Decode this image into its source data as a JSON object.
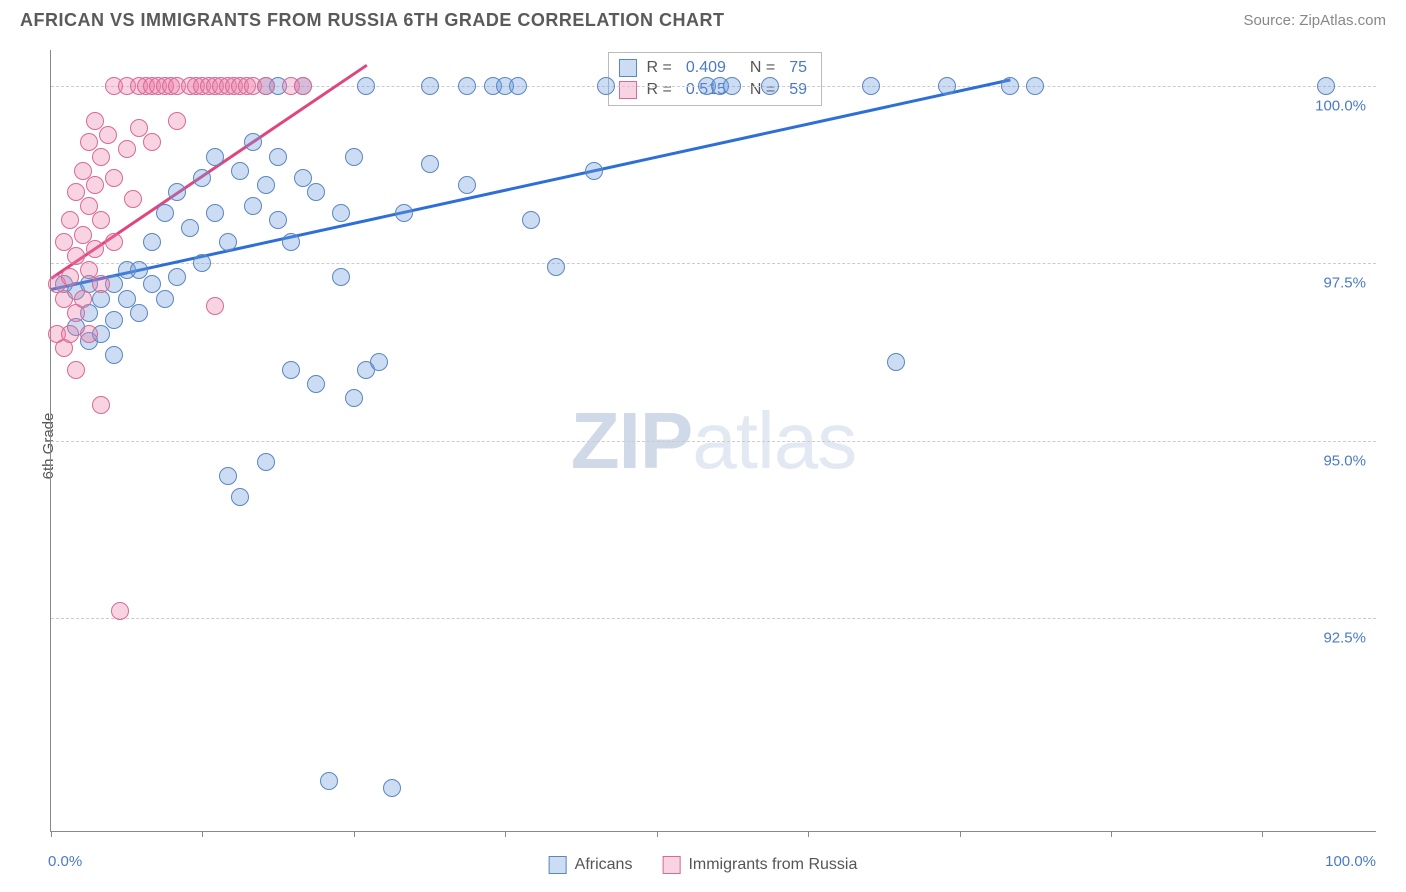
{
  "title": "AFRICAN VS IMMIGRANTS FROM RUSSIA 6TH GRADE CORRELATION CHART",
  "source": "Source: ZipAtlas.com",
  "y_axis_label": "6th Grade",
  "watermark_zip": "ZIP",
  "watermark_atlas": "atlas",
  "x_min_label": "0.0%",
  "x_max_label": "100.0%",
  "chart": {
    "type": "scatter",
    "background_color": "#ffffff",
    "grid_color": "#cccccc",
    "axis_color": "#888888",
    "label_color": "#4a7ac7",
    "xlim_pct": [
      0,
      105
    ],
    "ylim_pct": [
      89.5,
      100.5
    ],
    "y_ticks": [
      {
        "value": 100.0,
        "label": "100.0%"
      },
      {
        "value": 97.5,
        "label": "97.5%"
      },
      {
        "value": 95.0,
        "label": "95.0%"
      },
      {
        "value": 92.5,
        "label": "92.5%"
      }
    ],
    "x_ticks_pct": [
      0,
      12,
      24,
      36,
      48,
      60,
      72,
      84,
      96
    ],
    "marker_radius": 9,
    "marker_border_width": 1.5,
    "series": [
      {
        "name": "Africans",
        "fill_color": "rgba(106,154,220,0.35)",
        "border_color": "#5b86c4",
        "trend_color": "#2d6fd6",
        "trend_from": {
          "x": 0,
          "y": 97.15
        },
        "trend_to": {
          "x": 76,
          "y": 100.1
        },
        "R": "0.409",
        "N": "75",
        "points": [
          {
            "x": 1,
            "y": 97.2
          },
          {
            "x": 2,
            "y": 97.1
          },
          {
            "x": 2,
            "y": 96.6
          },
          {
            "x": 3,
            "y": 97.2
          },
          {
            "x": 3,
            "y": 96.8
          },
          {
            "x": 3,
            "y": 96.4
          },
          {
            "x": 4,
            "y": 97.0
          },
          {
            "x": 4,
            "y": 96.5
          },
          {
            "x": 5,
            "y": 97.2
          },
          {
            "x": 5,
            "y": 96.7
          },
          {
            "x": 5,
            "y": 96.2
          },
          {
            "x": 6,
            "y": 97.0
          },
          {
            "x": 6,
            "y": 97.4
          },
          {
            "x": 7,
            "y": 96.8
          },
          {
            "x": 7,
            "y": 97.4
          },
          {
            "x": 8,
            "y": 97.8
          },
          {
            "x": 8,
            "y": 97.2
          },
          {
            "x": 9,
            "y": 98.2
          },
          {
            "x": 9,
            "y": 97.0
          },
          {
            "x": 10,
            "y": 98.5
          },
          {
            "x": 10,
            "y": 97.3
          },
          {
            "x": 11,
            "y": 98.0
          },
          {
            "x": 12,
            "y": 98.7
          },
          {
            "x": 12,
            "y": 97.5
          },
          {
            "x": 13,
            "y": 98.2
          },
          {
            "x": 13,
            "y": 99.0
          },
          {
            "x": 14,
            "y": 97.8
          },
          {
            "x": 14,
            "y": 94.5
          },
          {
            "x": 15,
            "y": 98.8
          },
          {
            "x": 15,
            "y": 94.2
          },
          {
            "x": 16,
            "y": 99.2
          },
          {
            "x": 16,
            "y": 98.3
          },
          {
            "x": 17,
            "y": 100.0
          },
          {
            "x": 17,
            "y": 98.6
          },
          {
            "x": 17,
            "y": 94.7
          },
          {
            "x": 18,
            "y": 99.0
          },
          {
            "x": 18,
            "y": 98.1
          },
          {
            "x": 18,
            "y": 100.0
          },
          {
            "x": 19,
            "y": 97.8
          },
          {
            "x": 19,
            "y": 96.0
          },
          {
            "x": 20,
            "y": 98.7
          },
          {
            "x": 20,
            "y": 100.0
          },
          {
            "x": 21,
            "y": 98.5
          },
          {
            "x": 21,
            "y": 95.8
          },
          {
            "x": 22,
            "y": 90.2
          },
          {
            "x": 23,
            "y": 98.2
          },
          {
            "x": 23,
            "y": 97.3
          },
          {
            "x": 24,
            "y": 95.6
          },
          {
            "x": 24,
            "y": 99.0
          },
          {
            "x": 25,
            "y": 96.0
          },
          {
            "x": 25,
            "y": 100.0
          },
          {
            "x": 26,
            "y": 96.1
          },
          {
            "x": 27,
            "y": 90.1
          },
          {
            "x": 28,
            "y": 98.2
          },
          {
            "x": 30,
            "y": 100.0
          },
          {
            "x": 30,
            "y": 98.9
          },
          {
            "x": 33,
            "y": 100.0
          },
          {
            "x": 33,
            "y": 98.6
          },
          {
            "x": 35,
            "y": 100.0
          },
          {
            "x": 36,
            "y": 100.0
          },
          {
            "x": 37,
            "y": 100.0
          },
          {
            "x": 38,
            "y": 98.1
          },
          {
            "x": 40,
            "y": 97.45
          },
          {
            "x": 43,
            "y": 98.8
          },
          {
            "x": 44,
            "y": 100.0
          },
          {
            "x": 52,
            "y": 100.0
          },
          {
            "x": 53,
            "y": 100.0
          },
          {
            "x": 54,
            "y": 100.0
          },
          {
            "x": 57,
            "y": 100.0
          },
          {
            "x": 65,
            "y": 100.0
          },
          {
            "x": 67,
            "y": 96.1
          },
          {
            "x": 71,
            "y": 100.0
          },
          {
            "x": 76,
            "y": 100.0
          },
          {
            "x": 78,
            "y": 100.0
          },
          {
            "x": 101,
            "y": 100.0
          }
        ]
      },
      {
        "name": "Immigrants from Russia",
        "fill_color": "rgba(235,130,170,0.35)",
        "border_color": "#d86a95",
        "trend_color": "#e0457e",
        "trend_from": {
          "x": 0,
          "y": 97.3
        },
        "trend_to": {
          "x": 25,
          "y": 100.3
        },
        "R": "0.515",
        "N": "59",
        "points": [
          {
            "x": 0.5,
            "y": 97.2
          },
          {
            "x": 0.5,
            "y": 96.5
          },
          {
            "x": 1,
            "y": 97.8
          },
          {
            "x": 1,
            "y": 97.0
          },
          {
            "x": 1,
            "y": 96.3
          },
          {
            "x": 1.5,
            "y": 98.1
          },
          {
            "x": 1.5,
            "y": 97.3
          },
          {
            "x": 1.5,
            "y": 96.5
          },
          {
            "x": 2,
            "y": 98.5
          },
          {
            "x": 2,
            "y": 97.6
          },
          {
            "x": 2,
            "y": 96.8
          },
          {
            "x": 2,
            "y": 96.0
          },
          {
            "x": 2.5,
            "y": 98.8
          },
          {
            "x": 2.5,
            "y": 97.9
          },
          {
            "x": 2.5,
            "y": 97.0
          },
          {
            "x": 3,
            "y": 99.2
          },
          {
            "x": 3,
            "y": 98.3
          },
          {
            "x": 3,
            "y": 97.4
          },
          {
            "x": 3,
            "y": 96.5
          },
          {
            "x": 3.5,
            "y": 99.5
          },
          {
            "x": 3.5,
            "y": 98.6
          },
          {
            "x": 3.5,
            "y": 97.7
          },
          {
            "x": 4,
            "y": 99.0
          },
          {
            "x": 4,
            "y": 98.1
          },
          {
            "x": 4,
            "y": 97.2
          },
          {
            "x": 4,
            "y": 95.5
          },
          {
            "x": 4.5,
            "y": 99.3
          },
          {
            "x": 5,
            "y": 98.7
          },
          {
            "x": 5,
            "y": 97.8
          },
          {
            "x": 5,
            "y": 100.0
          },
          {
            "x": 5.5,
            "y": 92.6
          },
          {
            "x": 6,
            "y": 99.1
          },
          {
            "x": 6,
            "y": 100.0
          },
          {
            "x": 6.5,
            "y": 98.4
          },
          {
            "x": 7,
            "y": 100.0
          },
          {
            "x": 7,
            "y": 99.4
          },
          {
            "x": 7.5,
            "y": 100.0
          },
          {
            "x": 8,
            "y": 100.0
          },
          {
            "x": 8,
            "y": 99.2
          },
          {
            "x": 8.5,
            "y": 100.0
          },
          {
            "x": 9,
            "y": 100.0
          },
          {
            "x": 9.5,
            "y": 100.0
          },
          {
            "x": 10,
            "y": 100.0
          },
          {
            "x": 10,
            "y": 99.5
          },
          {
            "x": 11,
            "y": 100.0
          },
          {
            "x": 11.5,
            "y": 100.0
          },
          {
            "x": 12,
            "y": 100.0
          },
          {
            "x": 12.5,
            "y": 100.0
          },
          {
            "x": 13,
            "y": 100.0
          },
          {
            "x": 13,
            "y": 96.9
          },
          {
            "x": 13.5,
            "y": 100.0
          },
          {
            "x": 14,
            "y": 100.0
          },
          {
            "x": 14.5,
            "y": 100.0
          },
          {
            "x": 15,
            "y": 100.0
          },
          {
            "x": 15.5,
            "y": 100.0
          },
          {
            "x": 16,
            "y": 100.0
          },
          {
            "x": 17,
            "y": 100.0
          },
          {
            "x": 19,
            "y": 100.0
          },
          {
            "x": 20,
            "y": 100.0
          }
        ]
      }
    ]
  },
  "stat_legend": {
    "R_prefix": "R =",
    "N_prefix": "N ="
  },
  "bottom_legend": {
    "series1": "Africans",
    "series2": "Immigrants from Russia"
  }
}
